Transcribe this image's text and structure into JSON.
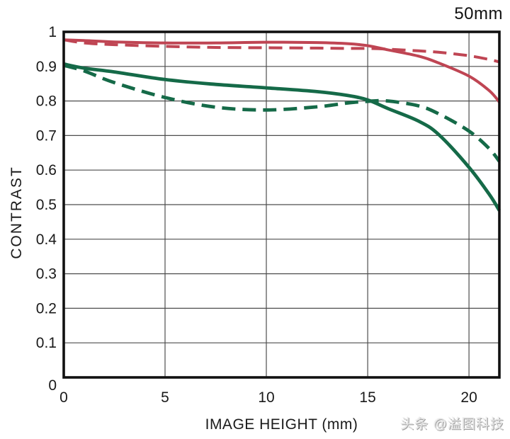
{
  "header": {
    "title": "50mm"
  },
  "axes": {
    "x_title": "IMAGE HEIGHT (mm)",
    "y_title": "CONTRAST"
  },
  "watermark": {
    "text": "头条 @溢图科技"
  },
  "chart_data": {
    "type": "line",
    "title": "50mm",
    "xlabel": "IMAGE HEIGHT (mm)",
    "ylabel": "CONTRAST",
    "xlim": [
      0,
      21.5
    ],
    "ylim": [
      0,
      1
    ],
    "grid": true,
    "legend_position": "none",
    "grid_color": "#4d4d4d",
    "frame_color": "#111111",
    "xticks": [
      0,
      5,
      10,
      15,
      20
    ],
    "xtick_labels": [
      "0",
      "5",
      "10",
      "15",
      "20"
    ],
    "yticks": [
      0,
      0.1,
      0.2,
      0.3,
      0.4,
      0.5,
      0.6,
      0.7,
      0.8,
      0.9,
      1
    ],
    "ytick_labels": [
      "0",
      "0.1",
      "0.2",
      "0.3",
      "0.4",
      "0.5",
      "0.6",
      "0.7",
      "0.8",
      "0.9",
      "1"
    ],
    "x": [
      0,
      1,
      2.5,
      5,
      7.5,
      10,
      12.5,
      14,
      15,
      16,
      17.5,
      18.5,
      20,
      21,
      21.5
    ],
    "series": [
      {
        "name": "red-solid",
        "color": "#bf4553",
        "style": "solid",
        "values": [
          0.977,
          0.975,
          0.971,
          0.968,
          0.968,
          0.97,
          0.969,
          0.966,
          0.96,
          0.948,
          0.93,
          0.91,
          0.872,
          0.83,
          0.797
        ]
      },
      {
        "name": "red-dashed",
        "color": "#bf4553",
        "style": "dashed",
        "values": [
          0.977,
          0.968,
          0.963,
          0.958,
          0.955,
          0.954,
          0.953,
          0.952,
          0.952,
          0.95,
          0.945,
          0.941,
          0.931,
          0.92,
          0.913
        ]
      },
      {
        "name": "green-solid",
        "color": "#156a48",
        "style": "solid",
        "values": [
          0.907,
          0.895,
          0.884,
          0.862,
          0.848,
          0.838,
          0.827,
          0.816,
          0.803,
          0.778,
          0.742,
          0.703,
          0.608,
          0.53,
          0.483
        ]
      },
      {
        "name": "green-dashed",
        "color": "#156a48",
        "style": "dashed",
        "values": [
          0.903,
          0.887,
          0.853,
          0.81,
          0.782,
          0.774,
          0.783,
          0.794,
          0.799,
          0.8,
          0.786,
          0.763,
          0.713,
          0.662,
          0.625
        ]
      }
    ]
  }
}
